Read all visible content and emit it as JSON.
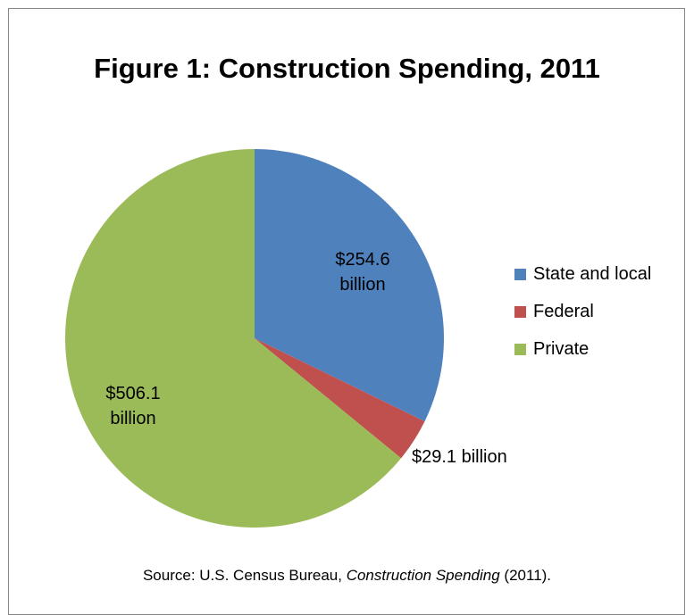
{
  "chart_data": {
    "type": "pie",
    "title": "Figure 1: Construction Spending, 2011",
    "unit": "billion",
    "slices": [
      {
        "name": "State and local",
        "value": 254.6,
        "label_lines": [
          "$254.6",
          "billion"
        ],
        "color": "#4f81bd"
      },
      {
        "name": "Federal",
        "value": 29.1,
        "label_lines": [
          "$29.1 billion"
        ],
        "color": "#c0504d"
      },
      {
        "name": "Private",
        "value": 506.1,
        "label_lines": [
          "$506.1",
          "billion"
        ],
        "color": "#9bbb59"
      }
    ],
    "start_angle_deg": 0,
    "direction": "clockwise",
    "legend_position": "right"
  },
  "source": {
    "prefix": "Source: U.S. Census Bureau, ",
    "italic": "Construction Spending",
    "suffix": " (2011)."
  }
}
